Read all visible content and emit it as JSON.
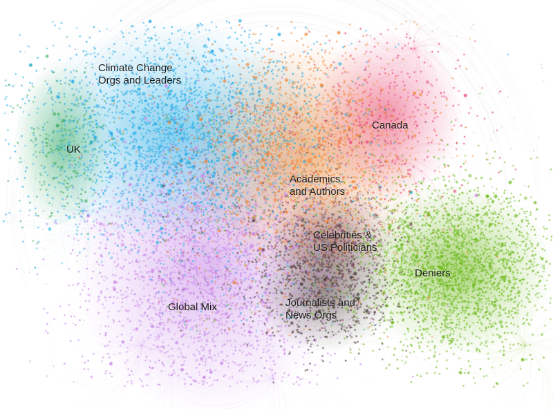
{
  "network": {
    "clusters": [
      {
        "id": "climate",
        "label": "Climate Change\nOrgs and Leaders",
        "color": "#2aaee6"
      },
      {
        "id": "uk",
        "label": "UK",
        "color": "#3fae62"
      },
      {
        "id": "canada",
        "label": "Canada",
        "color": "#e8487a"
      },
      {
        "id": "academics",
        "label": "Academics\nand Authors",
        "color": "#ef8a3c"
      },
      {
        "id": "celebs",
        "label": "Celebrities &\nUS Politicians",
        "color": "#7a4a58"
      },
      {
        "id": "deniers",
        "label": "Deniers",
        "color": "#6fba1e"
      },
      {
        "id": "global",
        "label": "Global Mix",
        "color": "#c98ae8"
      },
      {
        "id": "journalists",
        "label": "Journalists and\nNews Orgs",
        "color": "#4a3a3a"
      }
    ],
    "background": "#ffffff"
  }
}
